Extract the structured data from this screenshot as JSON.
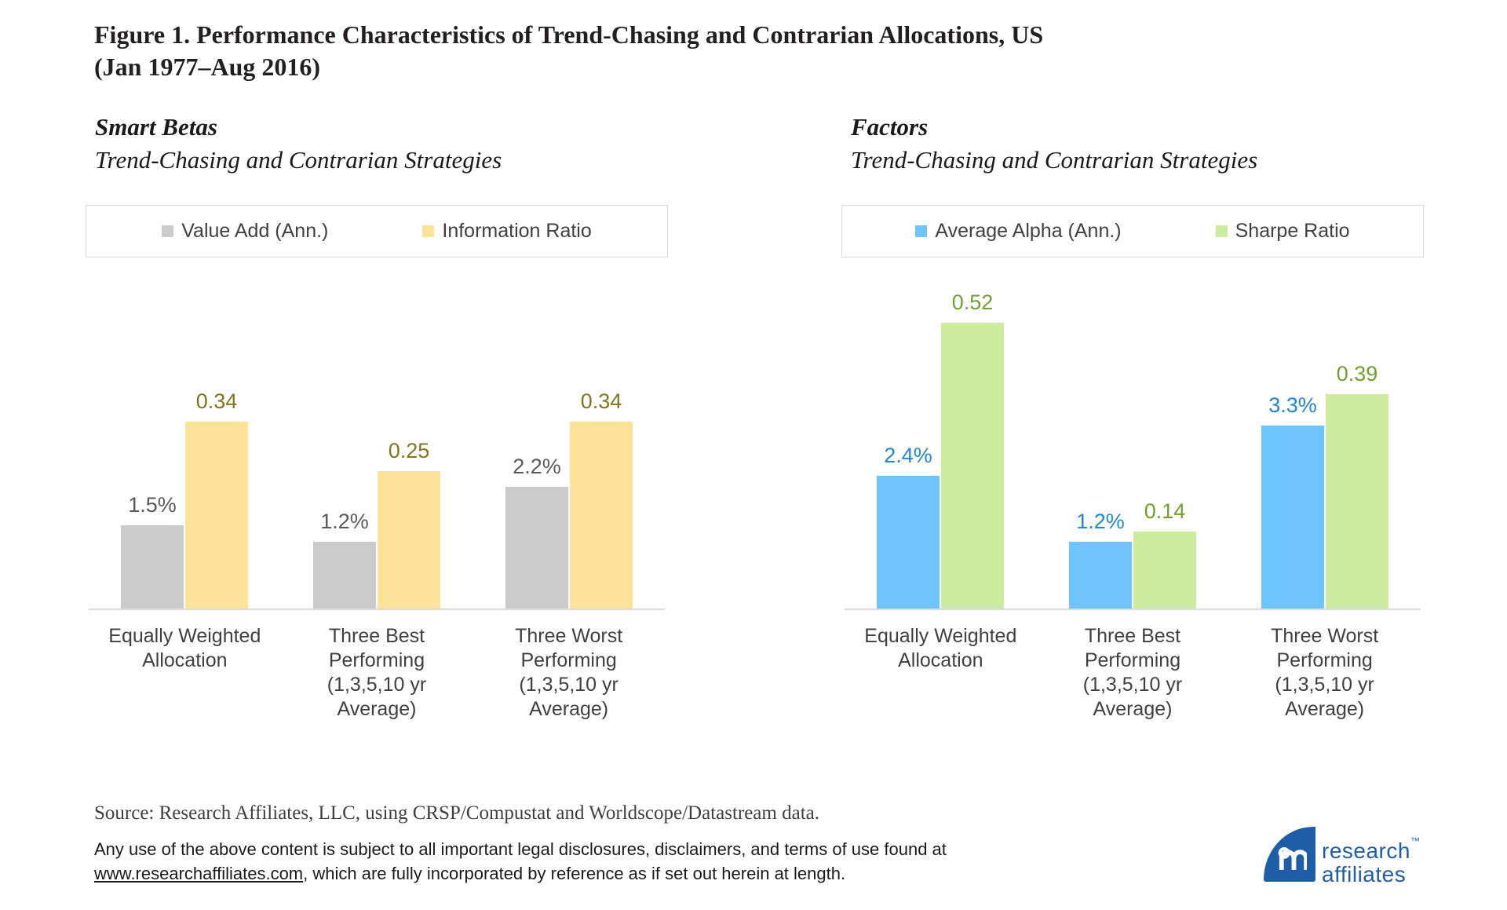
{
  "figure": {
    "title": "Figure 1. Performance Characteristics of Trend-Chasing and Contrarian Allocations, US\n(Jan 1977–Aug 2016)"
  },
  "chart_data": [
    {
      "type": "bar",
      "title": "Smart Betas",
      "subtitle": "Trend-Chasing and Contrarian Strategies",
      "legend_position": "top",
      "grid": false,
      "value_axis_visible": false,
      "categories": [
        "Equally Weighted Allocation",
        "Three Best Performing (1,3,5,10 yr Average)",
        "Three Worst Performing (1,3,5,10 yr Average)"
      ],
      "categories_display": [
        "Equally Weighted\nAllocation",
        "Three Best\nPerforming\n(1,3,5,10 yr\nAverage)",
        "Three Worst\nPerforming\n(1,3,5,10 yr\nAverage)"
      ],
      "series": [
        {
          "name": "Value Add (Ann.)",
          "values": [
            1.5,
            1.2,
            2.2
          ],
          "labels": [
            "1.5%",
            "1.2%",
            "2.2%"
          ],
          "unit": "%",
          "color": "#cbcbcb",
          "label_color": "#595959"
        },
        {
          "name": "Information Ratio",
          "values": [
            0.34,
            0.25,
            0.34
          ],
          "labels": [
            "0.34",
            "0.25",
            "0.34"
          ],
          "unit": "ratio",
          "color": "#fde399",
          "label_color": "#84751d"
        }
      ]
    },
    {
      "type": "bar",
      "title": "Factors",
      "subtitle": "Trend-Chasing and Contrarian Strategies",
      "legend_position": "top",
      "grid": false,
      "value_axis_visible": false,
      "categories": [
        "Equally Weighted Allocation",
        "Three Best Performing (1,3,5,10 yr Average)",
        "Three Worst Performing (1,3,5,10 yr Average)"
      ],
      "categories_display": [
        "Equally Weighted\nAllocation",
        "Three Best\nPerforming\n(1,3,5,10 yr\nAverage)",
        "Three Worst\nPerforming\n(1,3,5,10 yr\nAverage)"
      ],
      "series": [
        {
          "name": "Average Alpha (Ann.)",
          "values": [
            2.4,
            1.2,
            3.3
          ],
          "labels": [
            "2.4%",
            "1.2%",
            "3.3%"
          ],
          "unit": "%",
          "color": "#6ec4fc",
          "label_color": "#1e87db"
        },
        {
          "name": "Sharpe Ratio",
          "values": [
            0.52,
            0.14,
            0.39
          ],
          "labels": [
            "0.52",
            "0.14",
            "0.39"
          ],
          "unit": "ratio",
          "color": "#cdec9e",
          "label_color": "#70a02e"
        }
      ]
    }
  ],
  "source_note": "Source: Research Affiliates, LLC, using CRSP/Compustat and Worldscope/Datastream data.",
  "legal": {
    "line1": "Any use of the above content is subject to all important legal disclosures, disclaimers, and terms of use found at",
    "link_text": "www.researchaffiliates.com",
    "line2": ", which are fully incorporated by reference as if set out herein at length."
  },
  "logo": {
    "line1": "research",
    "line2": "affiliates",
    "tm": "™"
  },
  "colors": {
    "axis_line": "#d9d9d9",
    "legend_border": "#d9d9d9",
    "logo_blue": "#1e5ea9"
  }
}
